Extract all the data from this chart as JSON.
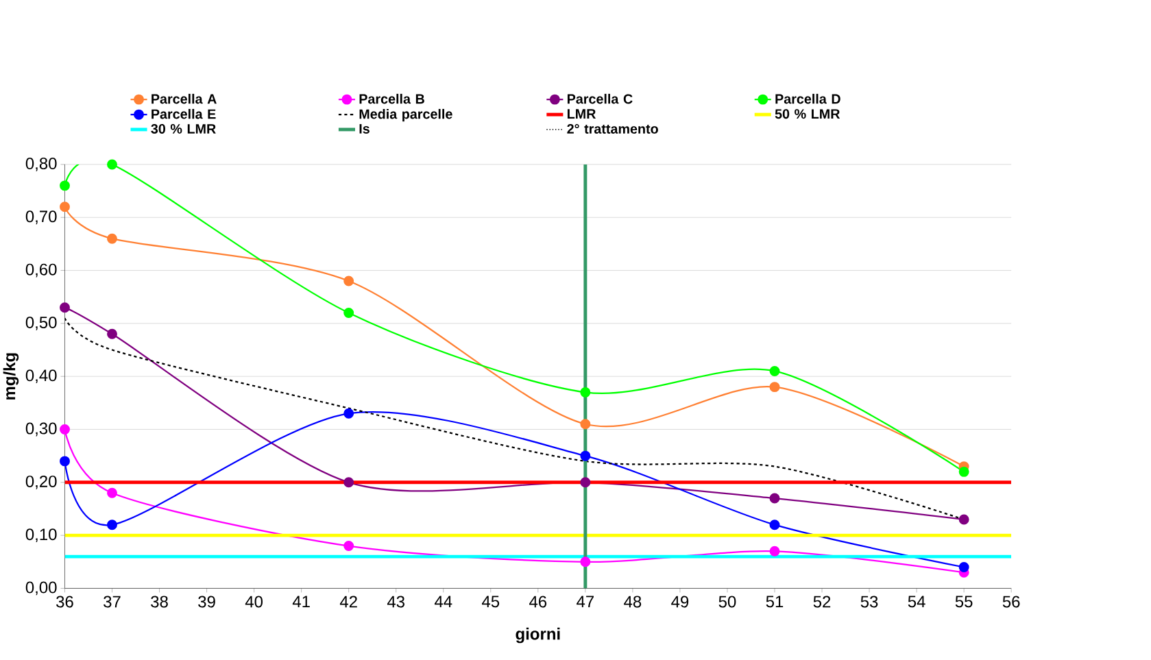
{
  "chart_data": {
    "type": "line",
    "xlabel": "giorni",
    "ylabel": "mg/kg",
    "x": [
      36,
      37,
      42,
      47,
      51,
      55
    ],
    "series": [
      {
        "name": "Parcella A",
        "color": "#ff8033",
        "values": [
          0.72,
          0.66,
          0.58,
          0.31,
          0.38,
          0.23
        ]
      },
      {
        "name": "Parcella B",
        "color": "#ff00ff",
        "values": [
          0.3,
          0.18,
          0.08,
          0.05,
          0.07,
          0.03
        ]
      },
      {
        "name": "Parcella C",
        "color": "#800080",
        "values": [
          0.53,
          0.48,
          0.2,
          0.2,
          0.17,
          0.13
        ]
      },
      {
        "name": "Parcella D",
        "color": "#00ff00",
        "values": [
          0.76,
          0.8,
          0.52,
          0.37,
          0.41,
          0.22
        ]
      },
      {
        "name": "Parcella E",
        "color": "#0000ff",
        "values": [
          0.24,
          0.12,
          0.33,
          0.25,
          0.12,
          0.04
        ]
      },
      {
        "name": "Media parcelle",
        "color": "#000000",
        "values": [
          0.51,
          0.45,
          0.34,
          0.24,
          0.23,
          0.13
        ],
        "marker": "none",
        "line_style": "dashed"
      }
    ],
    "ref_lines": [
      {
        "axis": "y",
        "value": 0.2,
        "label": "LMR",
        "color": "#ff0000"
      },
      {
        "axis": "y",
        "value": 0.1,
        "label": "50 % LMR",
        "color": "#ffff00"
      },
      {
        "axis": "y",
        "value": 0.06,
        "label": "30 % LMR",
        "color": "#00ffff"
      },
      {
        "axis": "x",
        "value": 47,
        "label": "Is",
        "color": "#339966"
      },
      {
        "axis": "x",
        "value": 47,
        "label": "2° trattamento",
        "color": "#000000",
        "line_style": "dotted"
      }
    ],
    "xlim": [
      36,
      56
    ],
    "xticks": [
      36,
      37,
      38,
      39,
      40,
      41,
      42,
      43,
      44,
      45,
      46,
      47,
      48,
      49,
      50,
      51,
      52,
      53,
      54,
      55,
      56
    ],
    "ylim": [
      0,
      0.8
    ],
    "yticks": [
      {
        "value": 0,
        "label": "0,00"
      },
      {
        "value": 0.1,
        "label": "0,10"
      },
      {
        "value": 0.2,
        "label": "0,20"
      },
      {
        "value": 0.3,
        "label": "0,30"
      },
      {
        "value": 0.4,
        "label": "0,40"
      },
      {
        "value": 0.5,
        "label": "0,50"
      },
      {
        "value": 0.6,
        "label": "0,60"
      },
      {
        "value": 0.7,
        "label": "0,70"
      },
      {
        "value": 0.8,
        "label": "0,80"
      }
    ],
    "grid": "y",
    "legend": "top",
    "marker": "circle",
    "line_style": "solid"
  }
}
